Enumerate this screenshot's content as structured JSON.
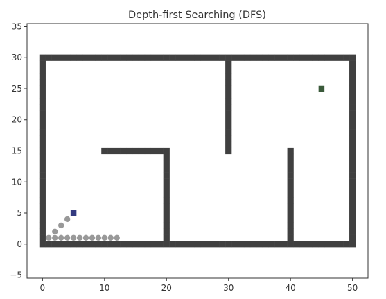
{
  "chart_data": {
    "type": "scatter",
    "title": "Depth-first Searching (DFS)",
    "xlabel": "",
    "ylabel": "",
    "xlim": [
      -2.5,
      52.5
    ],
    "ylim": [
      -5.5,
      35.5
    ],
    "grid": false,
    "xticks": [
      0,
      10,
      20,
      30,
      40,
      50
    ],
    "yticks": [
      -5,
      0,
      5,
      10,
      15,
      20,
      25,
      30,
      35
    ],
    "xtick_labels": [
      "0",
      "10",
      "20",
      "30",
      "40",
      "50"
    ],
    "ytick_labels": [
      "−5",
      "0",
      "5",
      "10",
      "15",
      "20",
      "25",
      "30",
      "35"
    ],
    "series": [
      {
        "kind": "obstacle",
        "marker": "square",
        "color": "#404040",
        "segments": [
          {
            "from": [
              0,
              0
            ],
            "to": [
              50,
              0
            ]
          },
          {
            "from": [
              0,
              30
            ],
            "to": [
              50,
              30
            ]
          },
          {
            "from": [
              0,
              0
            ],
            "to": [
              0,
              30
            ]
          },
          {
            "from": [
              50,
              0
            ],
            "to": [
              50,
              30
            ]
          },
          {
            "from": [
              10,
              15
            ],
            "to": [
              20,
              15
            ]
          },
          {
            "from": [
              20,
              0
            ],
            "to": [
              20,
              15
            ]
          },
          {
            "from": [
              30,
              15
            ],
            "to": [
              30,
              30
            ]
          },
          {
            "from": [
              40,
              0
            ],
            "to": [
              40,
              15
            ]
          }
        ]
      },
      {
        "kind": "visited",
        "marker": "circle",
        "color": "#999999",
        "points": [
          [
            1,
            1
          ],
          [
            2,
            1
          ],
          [
            3,
            1
          ],
          [
            4,
            1
          ],
          [
            5,
            1
          ],
          [
            6,
            1
          ],
          [
            7,
            1
          ],
          [
            8,
            1
          ],
          [
            9,
            1
          ],
          [
            10,
            1
          ],
          [
            11,
            1
          ],
          [
            12,
            1
          ],
          [
            2,
            2
          ],
          [
            3,
            3
          ],
          [
            4,
            4
          ]
        ]
      },
      {
        "kind": "start",
        "marker": "square",
        "color": "#333a80",
        "points": [
          [
            5,
            5
          ]
        ]
      },
      {
        "kind": "goal",
        "marker": "square",
        "color": "#3a5a3a",
        "points": [
          [
            45,
            25
          ]
        ]
      }
    ]
  }
}
